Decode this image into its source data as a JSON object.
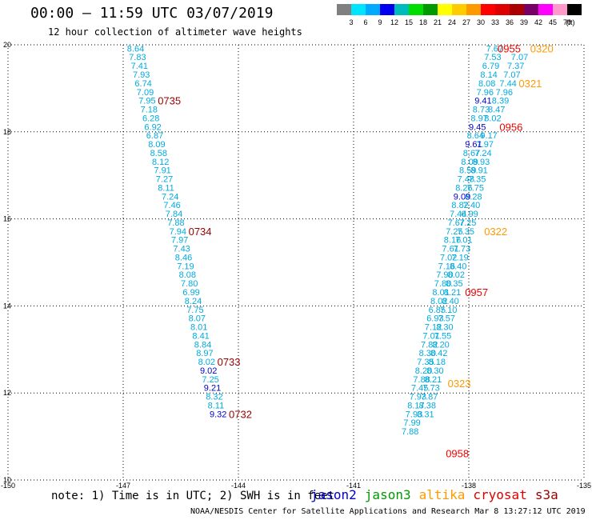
{
  "header": {
    "title": "00:00 – 11:59 UTC 03/07/2019",
    "subtitle": "12 hour collection of altimeter wave heights"
  },
  "scale_legend": {
    "colors": [
      "#808080",
      "#00e5ff",
      "#00aaff",
      "#0000ee",
      "#00bbbb",
      "#00dd00",
      "#009900",
      "#ffff00",
      "#ffcc00",
      "#ff9900",
      "#ff0000",
      "#dd0000",
      "#aa0000",
      "#770066",
      "#ff00ff",
      "#ff99cc",
      "#000000"
    ],
    "labels": [
      "3",
      "6",
      "9",
      "12",
      "15",
      "18",
      "21",
      "24",
      "27",
      "30",
      "33",
      "36",
      "39",
      "42",
      "45",
      "70"
    ],
    "unit": "(ft)"
  },
  "footer": {
    "note": "note: 1) Time is in UTC; 2) SWH is in feet",
    "credit": "NOAA/NESDIS Center for Satellite Applications and Research   Mar  8 13:27:12 UTC 2019"
  },
  "satellites": [
    {
      "name": "jason2",
      "color": "#0000cc"
    },
    {
      "name": "jason3",
      "color": "#009900"
    },
    {
      "name": "altika",
      "color": "#ff9900"
    },
    {
      "name": "cryosat",
      "color": "#dd0000"
    },
    {
      "name": "s3a",
      "color": "#990000"
    }
  ],
  "chart_data": {
    "type": "scatter",
    "xlim": [
      -150,
      -135
    ],
    "ylim": [
      10,
      20
    ],
    "x_ticks": [
      "-150",
      "-147",
      "-144",
      "-141",
      "-138",
      "-135"
    ],
    "y_ticks": [
      "10",
      "12",
      "14",
      "16",
      "18",
      "20"
    ],
    "colors": {
      "cyan": "#00aadd",
      "blue": "#0000cc",
      "s3a": "#990000",
      "cryosat": "#ee0000",
      "altika": "#ff9900"
    },
    "track_west": {
      "values": [
        "8.64",
        "7.83",
        "7.41",
        "7.93",
        "6.74",
        "7.09",
        "7.95",
        "7.18",
        "6.28",
        "6.92",
        "6.87",
        "8.09",
        "8.58",
        "8.12",
        "7.91",
        "7.27",
        "8.11",
        "7.24",
        "7.46",
        "7.84",
        "7.88",
        "7.94",
        "7.97",
        "7.43",
        "8.46",
        "7.19",
        "8.08",
        "7.80",
        "6.99",
        "8.24",
        "7.75",
        "8.07",
        "8.01",
        "8.41",
        "8.84",
        "8.97",
        "8.02",
        "9.02",
        "7.25",
        "9.21",
        "8.32",
        "8.11",
        "9.32"
      ],
      "lat": [
        19.92,
        19.72,
        19.52,
        19.32,
        19.12,
        18.92,
        18.72,
        18.52,
        18.32,
        18.12,
        17.92,
        17.72,
        17.52,
        17.32,
        17.12,
        16.92,
        16.72,
        16.52,
        16.32,
        16.12,
        15.92,
        15.72,
        15.52,
        15.32,
        15.12,
        14.92,
        14.72,
        14.52,
        14.32,
        14.12,
        13.92,
        13.72,
        13.52,
        13.32,
        13.12,
        12.92,
        12.72,
        12.52,
        12.32,
        12.12,
        11.92,
        11.72,
        11.52
      ],
      "lon": [
        -146.9,
        -146.85,
        -146.8,
        -146.75,
        -146.7,
        -146.65,
        -146.6,
        -146.55,
        -146.5,
        -146.45,
        -146.4,
        -146.35,
        -146.3,
        -146.25,
        -146.2,
        -146.15,
        -146.1,
        -146.0,
        -145.95,
        -145.9,
        -145.85,
        -145.8,
        -145.75,
        -145.7,
        -145.65,
        -145.6,
        -145.55,
        -145.5,
        -145.45,
        -145.4,
        -145.35,
        -145.3,
        -145.25,
        -145.2,
        -145.15,
        -145.1,
        -145.05,
        -145.0,
        -144.95,
        -144.9,
        -144.85,
        -144.8,
        -144.75
      ],
      "blue_indices": [
        37,
        39,
        42
      ],
      "time_labels": [
        {
          "text": "0735",
          "lat": 18.72,
          "lon": -146.1
        },
        {
          "text": "0734",
          "lat": 15.72,
          "lon": -145.3
        },
        {
          "text": "0733",
          "lat": 12.72,
          "lon": -144.55
        },
        {
          "text": "0732",
          "lat": 11.52,
          "lon": -144.25
        }
      ]
    },
    "track_east": {
      "values": [
        "7.67",
        "7.53",
        "6.79",
        "8.14",
        "8.08",
        "7.96",
        "9.41",
        "8.73",
        "8.97",
        "9.45",
        "8.64",
        "9.61",
        "8.67",
        "8.09",
        "8.59",
        "7.48",
        "8.26",
        "9.09",
        "8.82",
        "7.44",
        "7.67",
        "7.25",
        "8.16",
        "7.61",
        "7.02",
        "7.16",
        "7.90",
        "7.80",
        "8.01",
        "8.02",
        "6.85",
        "6.93",
        "7.12",
        "7.01",
        "7.82",
        "8.30",
        "7.35",
        "8.20",
        "7.88",
        "7.45",
        "7.93",
        "8.17",
        "7.93",
        "7.99",
        "7.88"
      ],
      "lat": [
        19.92,
        19.72,
        19.52,
        19.32,
        19.12,
        18.92,
        18.72,
        18.52,
        18.32,
        18.12,
        17.92,
        17.72,
        17.52,
        17.32,
        17.12,
        16.92,
        16.72,
        16.52,
        16.32,
        16.12,
        15.92,
        15.72,
        15.52,
        15.32,
        15.12,
        14.92,
        14.72,
        14.52,
        14.32,
        14.12,
        13.92,
        13.72,
        13.52,
        13.32,
        13.12,
        12.92,
        12.72,
        12.52,
        12.32,
        12.12,
        11.92,
        11.72,
        11.52,
        11.32,
        11.12
      ],
      "lon": [
        -137.55,
        -137.6,
        -137.65,
        -137.7,
        -137.75,
        -137.8,
        -137.85,
        -137.9,
        -137.95,
        -138.0,
        -138.05,
        -138.1,
        -138.15,
        -138.2,
        -138.25,
        -138.3,
        -138.35,
        -138.4,
        -138.45,
        -138.5,
        -138.55,
        -138.6,
        -138.65,
        -138.7,
        -138.75,
        -138.8,
        -138.85,
        -138.9,
        -138.95,
        -139.0,
        -139.05,
        -139.1,
        -139.15,
        -139.2,
        -139.25,
        -139.3,
        -139.35,
        -139.4,
        -139.45,
        -139.5,
        -139.55,
        -139.6,
        -139.65,
        -139.7,
        -139.75
      ],
      "blue_indices": [
        6,
        9,
        11,
        17
      ],
      "time_labels": [
        {
          "text": "0955",
          "lat": 19.92,
          "lon": -137.25,
          "sat": "cryosat"
        },
        {
          "text": "0956",
          "lat": 18.12,
          "lon": -137.2,
          "sat": "cryosat"
        },
        {
          "text": "0957",
          "lat": 14.32,
          "lon": -138.1,
          "sat": "cryosat"
        },
        {
          "text": "0958",
          "lat": 10.62,
          "lon": -138.6,
          "sat": "cryosat"
        }
      ]
    },
    "track_altika": {
      "values": [
        "7.07",
        "7.37",
        "7.07",
        "7.44",
        "7.96",
        "8.39",
        "8.47",
        "8.02",
        "9.17",
        "7.97",
        "7.24",
        "8.93",
        "8.91",
        "7.35",
        "7.75",
        "8.28",
        "7.40",
        "6.99",
        "7.25",
        "7.35",
        "7.01",
        "7.73",
        "7.19",
        "8.40",
        "8.02",
        "8.35",
        "8.21",
        "8.40",
        "7.10",
        "7.57",
        "8.30",
        "7.55",
        "8.20",
        "8.42",
        "8.18",
        "8.30",
        "8.21",
        "7.73",
        "7.87",
        "8.38",
        "8.31"
      ],
      "lat": [
        19.72,
        19.52,
        19.32,
        19.12,
        18.92,
        18.72,
        18.52,
        18.32,
        17.92,
        17.72,
        17.52,
        17.32,
        17.12,
        16.92,
        16.72,
        16.52,
        16.32,
        16.12,
        15.92,
        15.72,
        15.52,
        15.32,
        15.12,
        14.92,
        14.72,
        14.52,
        14.32,
        14.12,
        13.92,
        13.72,
        13.52,
        13.32,
        13.12,
        12.92,
        12.72,
        12.52,
        12.32,
        12.12,
        11.92,
        11.72,
        11.52
      ],
      "lon": [
        -136.9,
        -137.0,
        -137.1,
        -137.2,
        -137.3,
        -137.4,
        -137.5,
        -137.6,
        -137.7,
        -137.8,
        -137.85,
        -137.9,
        -137.95,
        -138.0,
        -138.05,
        -138.1,
        -138.15,
        -138.2,
        -138.25,
        -138.3,
        -138.35,
        -138.4,
        -138.45,
        -138.5,
        -138.55,
        -138.6,
        -138.65,
        -138.7,
        -138.75,
        -138.8,
        -138.85,
        -138.9,
        -138.95,
        -139.0,
        -139.05,
        -139.1,
        -139.15,
        -139.2,
        -139.25,
        -139.3,
        -139.35
      ],
      "time_labels": [
        {
          "text": "0320",
          "lat": 19.92,
          "lon": -136.4,
          "sat": "altika"
        },
        {
          "text": "0321",
          "lat": 19.12,
          "lon": -136.7,
          "sat": "altika"
        },
        {
          "text": "0322",
          "lat": 15.72,
          "lon": -137.6,
          "sat": "altika"
        },
        {
          "text": "0323",
          "lat": 12.22,
          "lon": -138.55,
          "sat": "altika"
        }
      ]
    }
  }
}
